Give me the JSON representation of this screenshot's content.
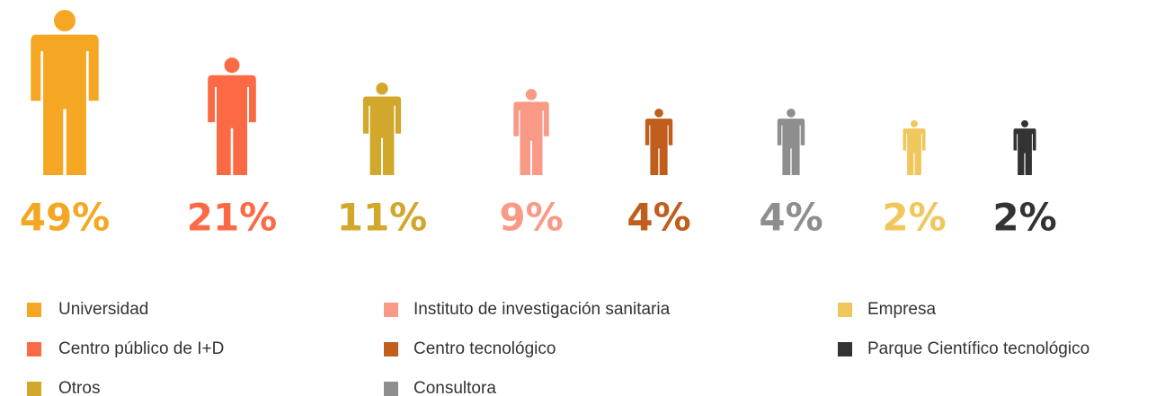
{
  "chart_data": {
    "type": "pictogram",
    "categories": [
      "Universidad",
      "Centro público de I+D",
      "Otros",
      "Instituto de investigación sanitaria",
      "Centro tecnológico",
      "Consultora",
      "Empresa",
      "Parque Científico tecnológico"
    ],
    "values": [
      49,
      21,
      11,
      9,
      4,
      4,
      2,
      2
    ],
    "value_labels": [
      "49%",
      "21%",
      "11%",
      "9%",
      "4%",
      "4%",
      "2%",
      "2%"
    ],
    "colors": [
      "#f5a623",
      "#fc6a45",
      "#d1a72c",
      "#f99a86",
      "#bf5e1d",
      "#8e8e8e",
      "#f0c75c",
      "#333333"
    ]
  }
}
